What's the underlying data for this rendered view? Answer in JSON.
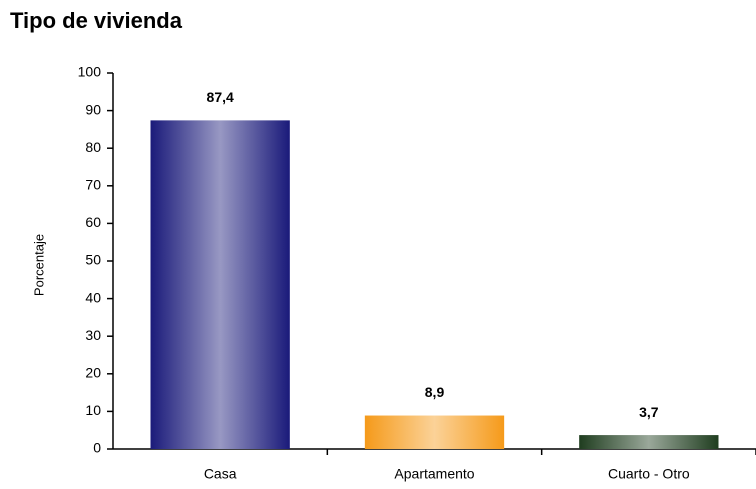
{
  "chart_data": {
    "type": "bar",
    "title": "Tipo de vivienda",
    "y_label": "Porcentaje",
    "categories": [
      "Casa",
      "Apartamento",
      "Cuarto - Otro"
    ],
    "values": [
      87.4,
      8.9,
      3.7
    ],
    "value_labels": [
      "87,4",
      "8,9",
      "3,7"
    ],
    "colors": [
      "#1a1a7a",
      "#f59a1a",
      "#1f3d1f"
    ],
    "ylim": [
      0,
      100
    ],
    "yticks": [
      0,
      10,
      20,
      30,
      40,
      50,
      60,
      70,
      80,
      90,
      100
    ]
  }
}
